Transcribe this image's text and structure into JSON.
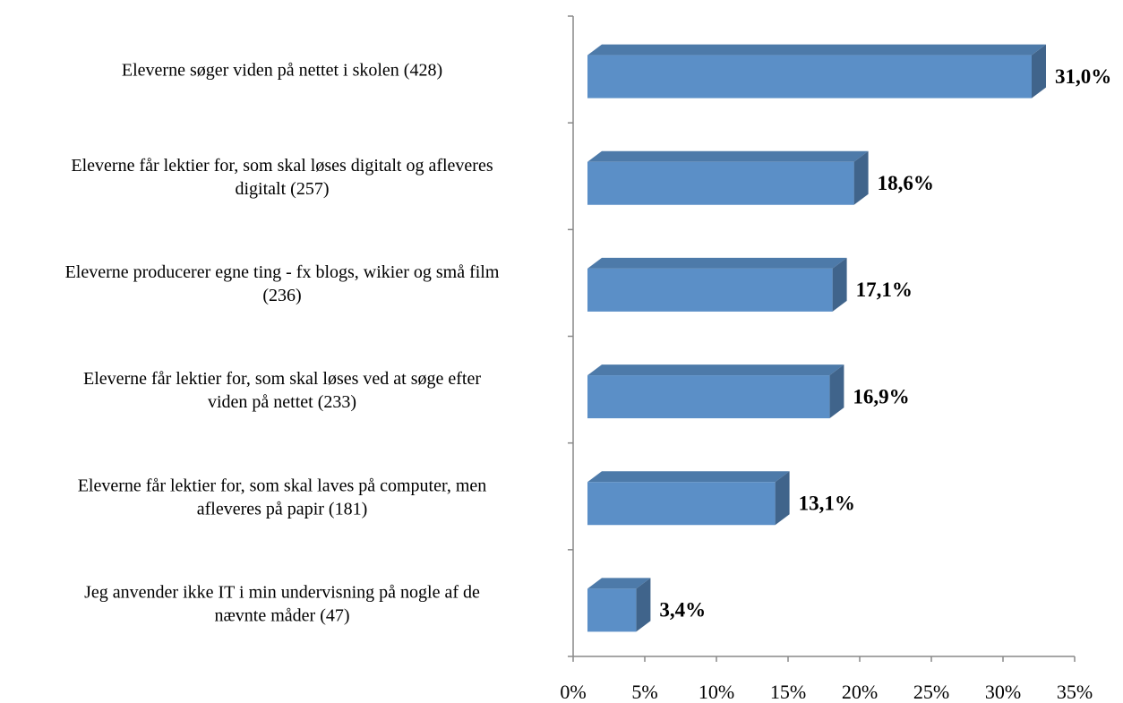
{
  "chart_data": {
    "type": "bar",
    "orientation": "horizontal",
    "categories": [
      "Eleverne søger viden på nettet i skolen (428)",
      "Eleverne får lektier for, som skal løses digitalt og afleveres\ndigitalt (257)",
      "Eleverne producerer egne ting - fx blogs, wikier og små film\n(236)",
      "Eleverne får lektier for, som skal løses ved at søge efter\nviden på nettet (233)",
      "Eleverne får lektier for, som skal laves på computer, men\nafleveres på papir (181)",
      "Jeg anvender ikke IT i min undervisning på nogle af de\nnævnte måder (47)"
    ],
    "values": [
      31.0,
      18.6,
      17.1,
      16.9,
      13.1,
      3.4
    ],
    "value_labels": [
      "31,0%",
      "18,6%",
      "17,1%",
      "16,9%",
      "13,1%",
      "3,4%"
    ],
    "color": "#5b8fc7",
    "xlim": [
      0,
      35
    ],
    "xticks": [
      {
        "value": 0,
        "label": "0%"
      },
      {
        "value": 5,
        "label": "5%"
      },
      {
        "value": 10,
        "label": "10%"
      },
      {
        "value": 15,
        "label": "15%"
      },
      {
        "value": 20,
        "label": "20%"
      },
      {
        "value": 25,
        "label": "25%"
      },
      {
        "value": 30,
        "label": "30%"
      },
      {
        "value": 35,
        "label": "35%"
      }
    ],
    "grid": false
  }
}
